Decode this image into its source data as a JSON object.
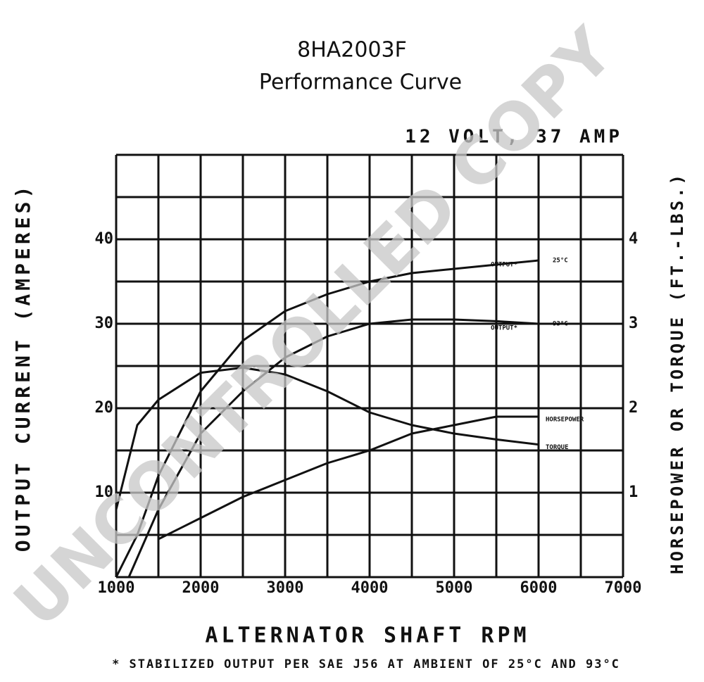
{
  "chart_data": {
    "type": "line",
    "title": "8HA2003F",
    "subtitle": "Performance Curve",
    "rating": "12 VOLT, 37 AMP",
    "xlabel": "ALTERNATOR SHAFT RPM",
    "ylabel": "OUTPUT CURRENT (AMPERES)",
    "y2label": "HORSEPOWER OR TORQUE (FT.-LBS.)",
    "footnote": "* STABILIZED OUTPUT PER SAE J56 AT AMBIENT OF 25°C AND 93°C",
    "watermark": "UNCONTROLLED COPY",
    "xlim": [
      1000,
      7000
    ],
    "xticks": [
      {
        "value": 1000,
        "label": "1000"
      },
      2000,
      3000,
      4000,
      5000,
      6000,
      7000
    ],
    "xgrid": [
      1000,
      1500,
      2000,
      2500,
      3000,
      3500,
      4000,
      4500,
      5000,
      5500,
      6000,
      6500,
      7000
    ],
    "ylim": [
      0,
      50
    ],
    "yticks": [
      10,
      20,
      30,
      40
    ],
    "ygrid": [
      0,
      5,
      10,
      15,
      20,
      25,
      30,
      35,
      40,
      45,
      50
    ],
    "y2lim": [
      0,
      5
    ],
    "y2ticks": [
      1,
      2,
      3,
      4
    ],
    "grid": true,
    "series": [
      {
        "name": "OUTPUT*",
        "temp": "25°C",
        "color": "#111111",
        "x": [
          1000,
          1250,
          1500,
          2000,
          2500,
          3000,
          3500,
          4000,
          4500,
          5000,
          5500,
          6000
        ],
        "values": [
          0,
          5,
          12,
          22,
          28,
          31.5,
          33.5,
          35,
          36,
          36.5,
          37,
          37.5
        ]
      },
      {
        "name": "OUTPUT*",
        "temp": "93°C",
        "color": "#111111",
        "x": [
          1150,
          1500,
          2000,
          2500,
          3000,
          3500,
          4000,
          4500,
          5000,
          5500,
          6000
        ],
        "values": [
          0,
          8,
          17,
          22,
          26,
          28.5,
          30,
          30.5,
          30.5,
          30.3,
          30
        ]
      },
      {
        "name": "HORSEPOWER",
        "color": "#111111",
        "axis": "y2",
        "x": [
          1500,
          2000,
          2500,
          3000,
          3500,
          4000,
          4500,
          5000,
          5500,
          6000
        ],
        "values": [
          0.45,
          0.7,
          0.95,
          1.15,
          1.35,
          1.5,
          1.7,
          1.8,
          1.9,
          1.9
        ]
      },
      {
        "name": "TORQUE",
        "color": "#111111",
        "axis": "y2",
        "x": [
          1000,
          1250,
          1500,
          2000,
          2500,
          3000,
          3500,
          4000,
          4500,
          5000,
          5500,
          6000
        ],
        "values": [
          0.8,
          1.8,
          2.1,
          2.42,
          2.48,
          2.4,
          2.2,
          1.95,
          1.8,
          1.7,
          1.63,
          1.57
        ]
      }
    ]
  }
}
